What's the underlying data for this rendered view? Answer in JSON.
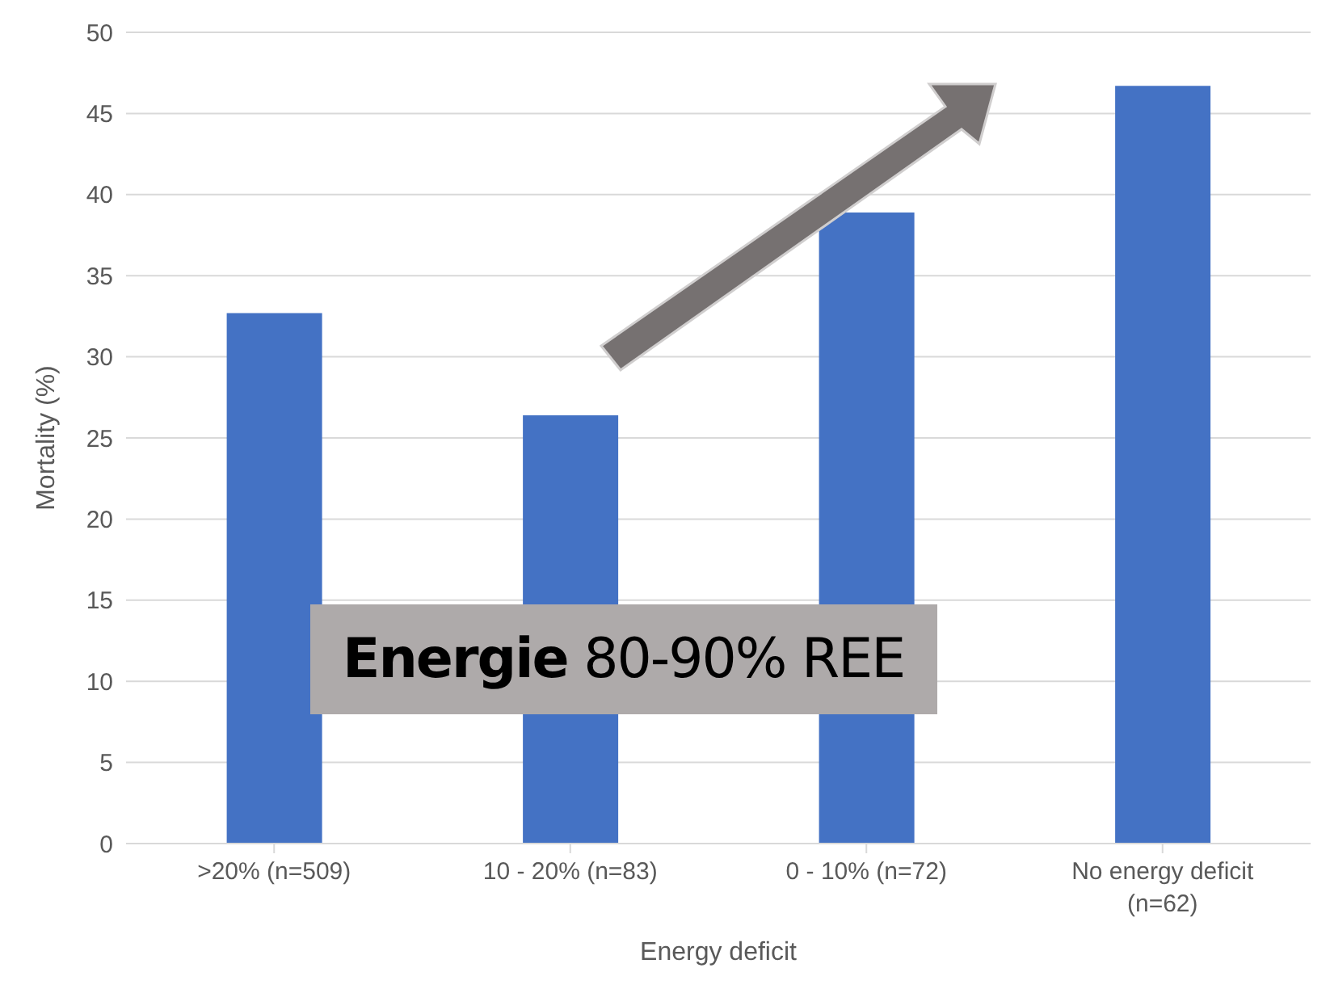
{
  "chart_data": {
    "type": "bar",
    "xlabel": "Energy deficit",
    "ylabel": "Mortality (%)",
    "categories": [
      ">20% (n=509)",
      "10 - 20% (n=83)",
      "0 - 10% (n=72)",
      "No energy deficit (n=62)"
    ],
    "values": [
      32.7,
      26.4,
      38.9,
      46.7
    ],
    "color": "#4472c4",
    "ylim": [
      0,
      50
    ],
    "yticks": [
      0,
      5,
      10,
      15,
      20,
      25,
      30,
      35,
      40,
      45,
      50
    ],
    "grid": "y",
    "annotations": [
      "Energie 80-90% REE"
    ]
  }
}
